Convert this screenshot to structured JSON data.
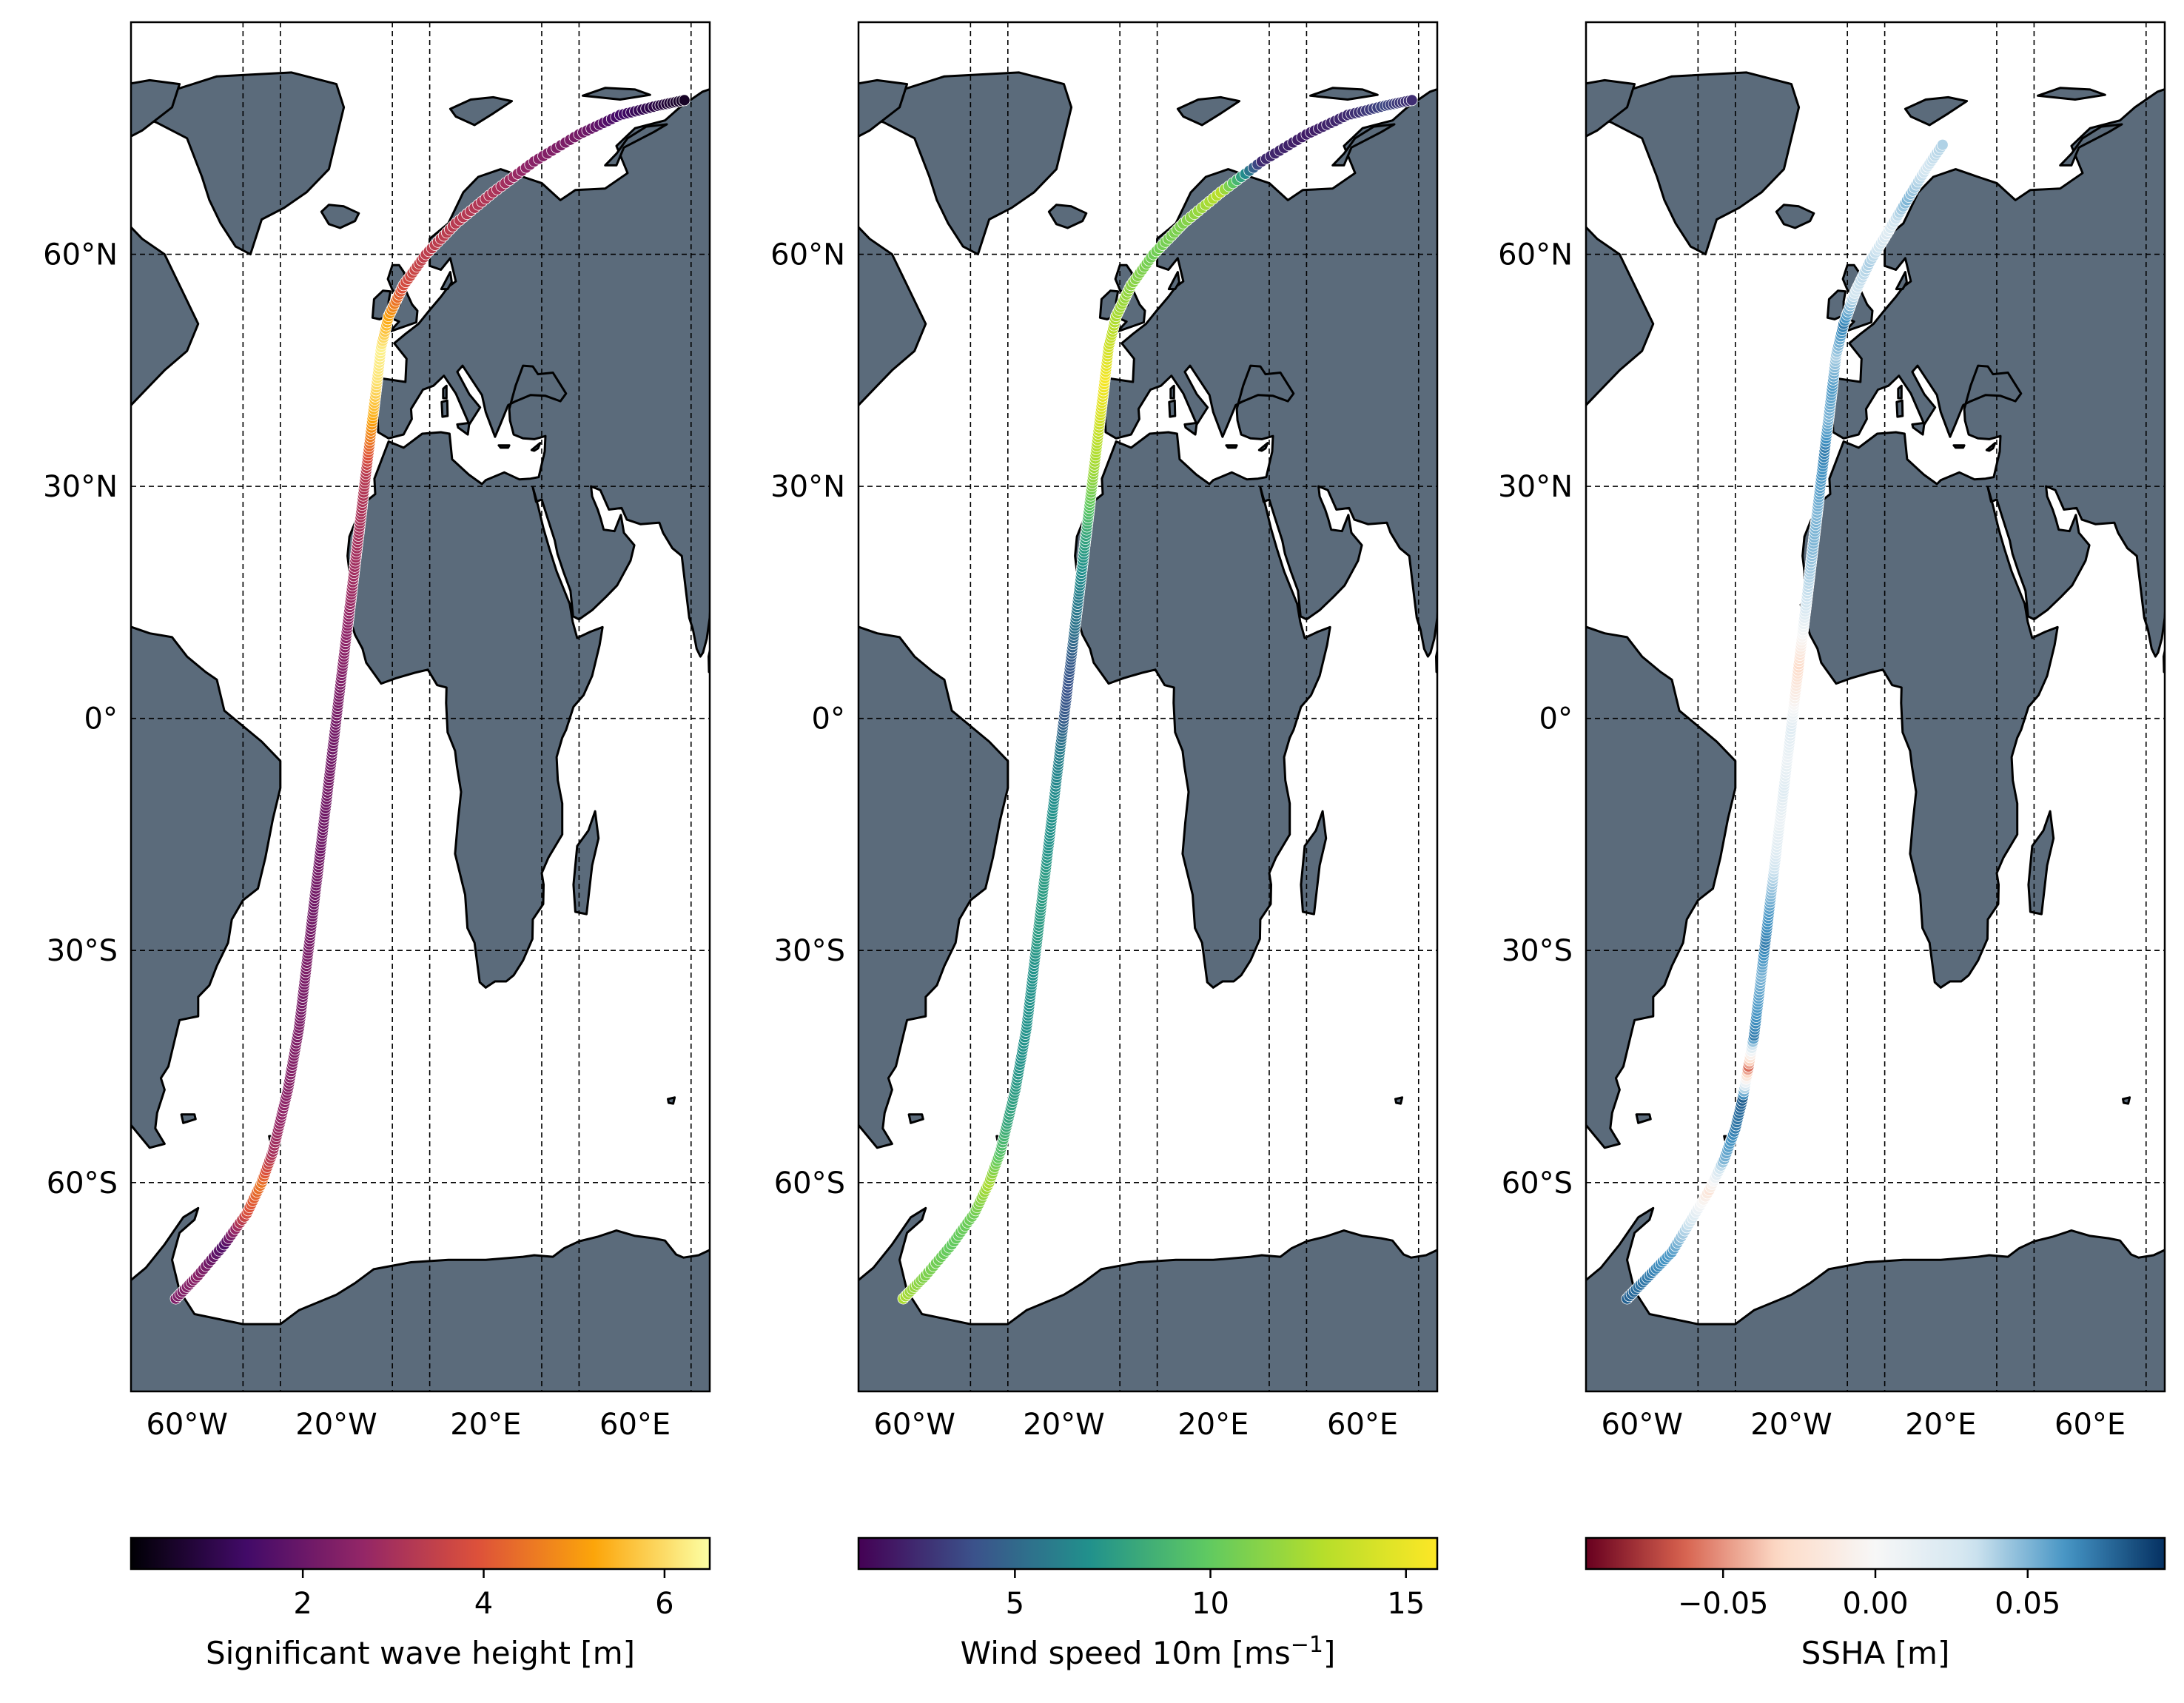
{
  "chart_data": [
    {
      "type": "scatter",
      "title": "",
      "map": "world-track",
      "xlim": [
        -75,
        80
      ],
      "ylim": [
        -87,
        90
      ],
      "x_ticks": [
        {
          "value": -60,
          "label": "60°W"
        },
        {
          "value": -20,
          "label": "20°W"
        },
        {
          "value": 20,
          "label": "20°E"
        },
        {
          "value": 60,
          "label": "60°E"
        }
      ],
      "x_grid": [
        -75,
        -45,
        -35,
        -5,
        5,
        35,
        45,
        75
      ],
      "y_ticks": [
        {
          "value": 60,
          "label": "60°N"
        },
        {
          "value": 30,
          "label": "30°N"
        },
        {
          "value": 0,
          "label": "0°"
        },
        {
          "value": -30,
          "label": "30°S"
        },
        {
          "value": -60,
          "label": "60°S"
        }
      ],
      "grid": true,
      "colormap": "inferno",
      "colors": [
        "#000004",
        "#420a68",
        "#932667",
        "#dd513a",
        "#fca50a",
        "#fcffa4"
      ],
      "colorbar": {
        "label": "Significant wave height [m]",
        "range": [
          0.1,
          6.5
        ],
        "ticks": [
          {
            "value": 2,
            "label": "2"
          },
          {
            "value": 4,
            "label": "4"
          },
          {
            "value": 6,
            "label": "6"
          }
        ]
      },
      "track": {
        "lon": [
          -63,
          -57,
          -50,
          -44,
          -40,
          -37,
          -35,
          -33,
          -31.5,
          -30,
          -29,
          -28,
          -27,
          -26,
          -25,
          -24,
          -23,
          -22,
          -21,
          -20,
          -19,
          -18,
          -17,
          -16,
          -15,
          -14,
          -13,
          -12,
          -11,
          -10,
          -9,
          -8,
          -6,
          -2,
          4,
          12,
          22,
          33,
          45,
          56,
          66,
          74
        ],
        "lat": [
          -75,
          -72,
          -68,
          -64,
          -60,
          -56,
          -52,
          -48,
          -44,
          -40,
          -36,
          -32,
          -28,
          -24,
          -20,
          -16,
          -12,
          -8,
          -4,
          0,
          4,
          8,
          12,
          16,
          20,
          24,
          28,
          32,
          36,
          40,
          44,
          48,
          52,
          56,
          60,
          64,
          68,
          72,
          75.5,
          78,
          79.2,
          80
        ],
        "values": [
          2.3,
          2.5,
          1.6,
          3.8,
          4.5,
          3.0,
          2.7,
          2.5,
          2.4,
          2.3,
          2.2,
          2.3,
          2.2,
          2.1,
          2.2,
          2.1,
          2.1,
          2.2,
          2.1,
          2.2,
          2.3,
          2.5,
          2.6,
          2.8,
          2.9,
          3.0,
          3.1,
          3.3,
          4.5,
          5.5,
          6.1,
          6.3,
          5.2,
          3.8,
          3.4,
          3.3,
          3.1,
          2.5,
          2.2,
          1.4,
          0.9,
          0.5
        ]
      }
    },
    {
      "type": "scatter",
      "title": "",
      "map": "world-track",
      "xlim": [
        -75,
        80
      ],
      "ylim": [
        -87,
        90
      ],
      "x_ticks": [
        {
          "value": -60,
          "label": "60°W"
        },
        {
          "value": -20,
          "label": "20°W"
        },
        {
          "value": 20,
          "label": "20°E"
        },
        {
          "value": 60,
          "label": "60°E"
        }
      ],
      "x_grid": [
        -75,
        -45,
        -35,
        -5,
        5,
        35,
        45,
        75
      ],
      "y_ticks": [
        {
          "value": 60,
          "label": "60°N"
        },
        {
          "value": 30,
          "label": "30°N"
        },
        {
          "value": 0,
          "label": "0°"
        },
        {
          "value": -30,
          "label": "30°S"
        },
        {
          "value": -60,
          "label": "60°S"
        }
      ],
      "grid": true,
      "colormap": "viridis",
      "colors": [
        "#440154",
        "#3b528b",
        "#21918c",
        "#5ec962",
        "#b5de2b",
        "#fde725"
      ],
      "colorbar": {
        "label": "Wind speed 10m [ms",
        "label_sup": "−1",
        "label_end": "]",
        "range": [
          1,
          15.8
        ],
        "ticks": [
          {
            "value": 5,
            "label": "5"
          },
          {
            "value": 10,
            "label": "10"
          },
          {
            "value": 15,
            "label": "15"
          }
        ]
      },
      "track": {
        "lon": [
          -63,
          -57,
          -50,
          -44,
          -40,
          -37,
          -35,
          -33,
          -31.5,
          -30,
          -29,
          -28,
          -27,
          -26,
          -25,
          -24,
          -23,
          -22,
          -21,
          -20,
          -19,
          -18,
          -17,
          -16,
          -15,
          -14,
          -13,
          -12,
          -11,
          -10,
          -9,
          -8,
          -6,
          -2,
          4,
          12,
          22,
          33,
          45,
          56,
          66,
          74
        ],
        "lat": [
          -75,
          -72,
          -68,
          -64,
          -60,
          -56,
          -52,
          -48,
          -44,
          -40,
          -36,
          -32,
          -28,
          -24,
          -20,
          -16,
          -12,
          -8,
          -4,
          0,
          4,
          8,
          12,
          16,
          20,
          24,
          28,
          32,
          36,
          40,
          44,
          48,
          52,
          56,
          60,
          64,
          68,
          72,
          75.5,
          78,
          79.2,
          80
        ],
        "values": [
          12.5,
          11.0,
          10.0,
          10.5,
          12.5,
          9.5,
          8.0,
          7.5,
          7.0,
          7.0,
          7.0,
          7.0,
          7.5,
          7.5,
          7.5,
          7.0,
          7.0,
          6.5,
          6.0,
          4.5,
          4.0,
          4.5,
          5.5,
          6.0,
          7.0,
          8.0,
          10.0,
          12.0,
          13.0,
          14.5,
          15.5,
          14.0,
          12.5,
          11.5,
          10.5,
          11.0,
          13.0,
          2.5,
          2.0,
          2.5,
          3.5,
          2.5
        ]
      }
    },
    {
      "type": "scatter",
      "title": "",
      "map": "world-track",
      "xlim": [
        -75,
        80
      ],
      "ylim": [
        -87,
        90
      ],
      "x_ticks": [
        {
          "value": -60,
          "label": "60°W"
        },
        {
          "value": -20,
          "label": "20°W"
        },
        {
          "value": 20,
          "label": "20°E"
        },
        {
          "value": 60,
          "label": "60°E"
        }
      ],
      "x_grid": [
        -75,
        -45,
        -35,
        -5,
        5,
        35,
        45,
        75
      ],
      "y_ticks": [
        {
          "value": 60,
          "label": "60°N"
        },
        {
          "value": 30,
          "label": "30°N"
        },
        {
          "value": 0,
          "label": "0°"
        },
        {
          "value": -30,
          "label": "30°S"
        },
        {
          "value": -60,
          "label": "60°S"
        }
      ],
      "grid": true,
      "colormap": "RdBu",
      "colors": [
        "#67001f",
        "#d6604d",
        "#fddbc7",
        "#f7f7f7",
        "#d1e5f0",
        "#4393c3",
        "#053061"
      ],
      "colorbar": {
        "label": "SSHA [m]",
        "range": [
          -0.095,
          0.095
        ],
        "ticks": [
          {
            "value": -0.05,
            "label": "−0.05"
          },
          {
            "value": 0,
            "label": "0.00"
          },
          {
            "value": 0.05,
            "label": "0.05"
          }
        ]
      },
      "track": {
        "lon": [
          -64,
          -58,
          -52,
          -47,
          -42,
          -38,
          -35,
          -33,
          -31.5,
          -30,
          -29,
          -28,
          -27,
          -26,
          -25,
          -24,
          -23,
          -22,
          -21,
          -20,
          -19,
          -18,
          -17,
          -16,
          -15,
          -14,
          -13,
          -12,
          -11,
          -10,
          -9,
          -8,
          -6,
          -3,
          1,
          6,
          11,
          16,
          21
        ],
        "lat": [
          -75,
          -72,
          -69,
          -65,
          -61,
          -57,
          -53,
          -49,
          -45,
          -41,
          -37,
          -33,
          -29,
          -25,
          -21,
          -17,
          -13,
          -9,
          -5,
          -1,
          3,
          7,
          11,
          15,
          19,
          23,
          27,
          31,
          35,
          39,
          43,
          47,
          51,
          55,
          59,
          63,
          67,
          71,
          74.5
        ],
        "values": [
          0.08,
          0.07,
          0.06,
          0.03,
          -0.02,
          0.05,
          0.07,
          0.08,
          -0.06,
          0.07,
          0.06,
          0.05,
          0.07,
          0.06,
          0.04,
          0.02,
          0.01,
          0.02,
          0.01,
          0.02,
          -0.01,
          -0.03,
          0.0,
          0.03,
          0.04,
          0.05,
          0.05,
          0.06,
          0.07,
          0.05,
          0.06,
          0.04,
          0.07,
          0.03,
          0.04,
          0.02,
          0.05,
          0.03,
          0.04
        ]
      }
    }
  ]
}
